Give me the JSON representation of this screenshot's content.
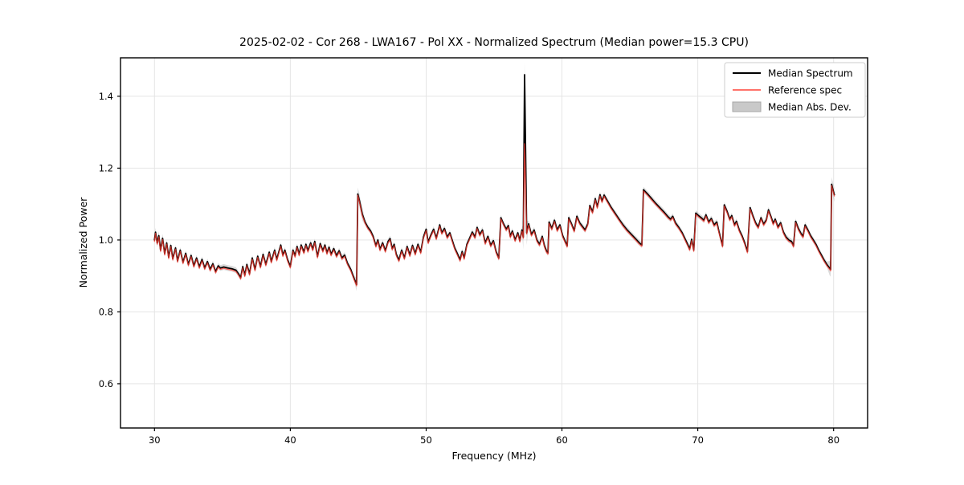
{
  "title": "2025-02-02 - Cor 268 - LWA167 - Pol XX - Normalized Spectrum (Median power=15.3 CPU)",
  "axes": {
    "xlabel": "Frequency (MHz)",
    "ylabel": "Normalized Power",
    "xtick_labels": [
      "30",
      "40",
      "50",
      "60",
      "70",
      "80"
    ],
    "ytick_labels": [
      "0.6",
      "0.8",
      "1.0",
      "1.2",
      "1.4"
    ]
  },
  "legend": {
    "entries": [
      {
        "label": "Median Spectrum",
        "type": "line",
        "color": "#000000"
      },
      {
        "label": "Reference spec",
        "type": "line",
        "color": "#f25c54"
      },
      {
        "label": "Median Abs. Dev.",
        "type": "patch",
        "color": "#c9c9c9"
      }
    ]
  },
  "colors": {
    "median_line": "#000000",
    "reference_line": "#ff3b30",
    "reference_opacity": 0.72,
    "mad_band_fill": "#b8b8b8",
    "mad_band_opacity": 0.5,
    "grid": "#e5e5e5",
    "frame": "#000000",
    "background": "#ffffff"
  },
  "chart_data": {
    "type": "line",
    "title": "2025-02-02 - Cor 268 - LWA167 - Pol XX - Normalized Spectrum (Median power=15.3 CPU)",
    "xlabel": "Frequency (MHz)",
    "ylabel": "Normalized Power",
    "xlim": [
      27.5,
      82.5
    ],
    "ylim": [
      0.477,
      1.507
    ],
    "xticks": [
      30,
      40,
      50,
      60,
      70,
      80
    ],
    "yticks": [
      0.6,
      0.8,
      1.0,
      1.2,
      1.4
    ],
    "grid": true,
    "legend_position": "upper right",
    "series": [
      {
        "name": "Median Spectrum",
        "color": "#000000",
        "points": [
          [
            30.0,
            1.0
          ],
          [
            30.08,
            1.022
          ],
          [
            30.2,
            0.992
          ],
          [
            30.32,
            1.012
          ],
          [
            30.45,
            0.972
          ],
          [
            30.6,
            1.005
          ],
          [
            30.75,
            0.962
          ],
          [
            30.9,
            0.992
          ],
          [
            31.05,
            0.952
          ],
          [
            31.2,
            0.985
          ],
          [
            31.35,
            0.948
          ],
          [
            31.55,
            0.978
          ],
          [
            31.7,
            0.942
          ],
          [
            31.9,
            0.972
          ],
          [
            32.1,
            0.938
          ],
          [
            32.3,
            0.963
          ],
          [
            32.5,
            0.932
          ],
          [
            32.7,
            0.957
          ],
          [
            32.9,
            0.928
          ],
          [
            33.1,
            0.95
          ],
          [
            33.3,
            0.925
          ],
          [
            33.5,
            0.946
          ],
          [
            33.7,
            0.922
          ],
          [
            33.9,
            0.94
          ],
          [
            34.1,
            0.918
          ],
          [
            34.3,
            0.934
          ],
          [
            34.5,
            0.912
          ],
          [
            34.7,
            0.928
          ],
          [
            34.85,
            0.922
          ],
          [
            35.1,
            0.925
          ],
          [
            35.4,
            0.922
          ],
          [
            35.7,
            0.92
          ],
          [
            36.0,
            0.916
          ],
          [
            36.2,
            0.905
          ],
          [
            36.35,
            0.895
          ],
          [
            36.5,
            0.926
          ],
          [
            36.65,
            0.902
          ],
          [
            36.8,
            0.932
          ],
          [
            37.0,
            0.906
          ],
          [
            37.2,
            0.95
          ],
          [
            37.4,
            0.918
          ],
          [
            37.6,
            0.955
          ],
          [
            37.8,
            0.926
          ],
          [
            38.0,
            0.96
          ],
          [
            38.2,
            0.932
          ],
          [
            38.45,
            0.966
          ],
          [
            38.6,
            0.94
          ],
          [
            38.85,
            0.972
          ],
          [
            39.0,
            0.946
          ],
          [
            39.3,
            0.986
          ],
          [
            39.45,
            0.958
          ],
          [
            39.6,
            0.972
          ],
          [
            39.8,
            0.945
          ],
          [
            40.0,
            0.926
          ],
          [
            40.2,
            0.972
          ],
          [
            40.35,
            0.956
          ],
          [
            40.5,
            0.982
          ],
          [
            40.65,
            0.96
          ],
          [
            40.8,
            0.986
          ],
          [
            41.0,
            0.966
          ],
          [
            41.15,
            0.988
          ],
          [
            41.3,
            0.97
          ],
          [
            41.5,
            0.992
          ],
          [
            41.65,
            0.974
          ],
          [
            41.8,
            0.996
          ],
          [
            42.0,
            0.954
          ],
          [
            42.2,
            0.99
          ],
          [
            42.4,
            0.97
          ],
          [
            42.55,
            0.986
          ],
          [
            42.7,
            0.964
          ],
          [
            42.85,
            0.98
          ],
          [
            43.0,
            0.96
          ],
          [
            43.2,
            0.976
          ],
          [
            43.4,
            0.956
          ],
          [
            43.6,
            0.97
          ],
          [
            43.8,
            0.95
          ],
          [
            44.0,
            0.958
          ],
          [
            44.2,
            0.936
          ],
          [
            44.45,
            0.918
          ],
          [
            44.7,
            0.893
          ],
          [
            44.88,
            0.876
          ],
          [
            44.97,
            1.128
          ],
          [
            45.1,
            1.108
          ],
          [
            45.3,
            1.072
          ],
          [
            45.5,
            1.05
          ],
          [
            45.7,
            1.036
          ],
          [
            45.9,
            1.026
          ],
          [
            46.1,
            1.01
          ],
          [
            46.3,
            0.984
          ],
          [
            46.45,
            1.0
          ],
          [
            46.6,
            0.974
          ],
          [
            46.8,
            0.992
          ],
          [
            47.0,
            0.97
          ],
          [
            47.2,
            0.996
          ],
          [
            47.35,
            1.004
          ],
          [
            47.5,
            0.976
          ],
          [
            47.65,
            0.988
          ],
          [
            47.8,
            0.96
          ],
          [
            48.0,
            0.944
          ],
          [
            48.2,
            0.972
          ],
          [
            48.4,
            0.95
          ],
          [
            48.6,
            0.982
          ],
          [
            48.8,
            0.958
          ],
          [
            49.0,
            0.985
          ],
          [
            49.2,
            0.962
          ],
          [
            49.4,
            0.988
          ],
          [
            49.6,
            0.966
          ],
          [
            49.8,
            1.008
          ],
          [
            50.0,
            1.03
          ],
          [
            50.15,
            0.994
          ],
          [
            50.35,
            1.014
          ],
          [
            50.55,
            1.03
          ],
          [
            50.75,
            1.005
          ],
          [
            51.0,
            1.042
          ],
          [
            51.15,
            1.02
          ],
          [
            51.35,
            1.032
          ],
          [
            51.55,
            1.008
          ],
          [
            51.75,
            1.02
          ],
          [
            51.95,
            0.996
          ],
          [
            52.1,
            0.978
          ],
          [
            52.3,
            0.962
          ],
          [
            52.5,
            0.945
          ],
          [
            52.65,
            0.968
          ],
          [
            52.8,
            0.95
          ],
          [
            53.0,
            0.988
          ],
          [
            53.2,
            1.005
          ],
          [
            53.4,
            1.022
          ],
          [
            53.6,
            1.008
          ],
          [
            53.75,
            1.035
          ],
          [
            53.95,
            1.015
          ],
          [
            54.15,
            1.028
          ],
          [
            54.35,
            0.992
          ],
          [
            54.55,
            1.01
          ],
          [
            54.75,
            0.985
          ],
          [
            54.95,
            0.998
          ],
          [
            55.15,
            0.968
          ],
          [
            55.35,
            0.95
          ],
          [
            55.5,
            1.062
          ],
          [
            55.7,
            1.045
          ],
          [
            55.9,
            1.03
          ],
          [
            56.05,
            1.04
          ],
          [
            56.2,
            1.01
          ],
          [
            56.35,
            1.025
          ],
          [
            56.55,
            1.0
          ],
          [
            56.75,
            1.02
          ],
          [
            56.9,
            0.998
          ],
          [
            57.05,
            1.028
          ],
          [
            57.15,
            1.008
          ],
          [
            57.25,
            1.46
          ],
          [
            57.4,
            1.02
          ],
          [
            57.55,
            1.045
          ],
          [
            57.75,
            1.015
          ],
          [
            57.95,
            1.028
          ],
          [
            58.15,
            1.0
          ],
          [
            58.35,
            0.988
          ],
          [
            58.55,
            1.01
          ],
          [
            58.7,
            0.985
          ],
          [
            58.85,
            0.97
          ],
          [
            58.97,
            0.964
          ],
          [
            59.05,
            1.05
          ],
          [
            59.25,
            1.032
          ],
          [
            59.45,
            1.055
          ],
          [
            59.65,
            1.028
          ],
          [
            59.85,
            1.042
          ],
          [
            60.05,
            1.012
          ],
          [
            60.25,
            0.995
          ],
          [
            60.38,
            0.984
          ],
          [
            60.5,
            1.062
          ],
          [
            60.7,
            1.045
          ],
          [
            60.9,
            1.026
          ],
          [
            61.1,
            1.066
          ],
          [
            61.3,
            1.048
          ],
          [
            61.5,
            1.038
          ],
          [
            61.7,
            1.028
          ],
          [
            61.9,
            1.045
          ],
          [
            62.05,
            1.096
          ],
          [
            62.25,
            1.078
          ],
          [
            62.45,
            1.115
          ],
          [
            62.6,
            1.092
          ],
          [
            62.8,
            1.126
          ],
          [
            62.95,
            1.108
          ],
          [
            63.1,
            1.125
          ],
          [
            63.3,
            1.112
          ],
          [
            63.6,
            1.092
          ],
          [
            63.9,
            1.075
          ],
          [
            64.2,
            1.058
          ],
          [
            64.5,
            1.042
          ],
          [
            64.8,
            1.028
          ],
          [
            65.1,
            1.016
          ],
          [
            65.4,
            1.004
          ],
          [
            65.7,
            0.992
          ],
          [
            65.88,
            0.986
          ],
          [
            66.0,
            1.14
          ],
          [
            66.3,
            1.128
          ],
          [
            66.6,
            1.115
          ],
          [
            66.9,
            1.102
          ],
          [
            67.2,
            1.09
          ],
          [
            67.5,
            1.078
          ],
          [
            67.8,
            1.065
          ],
          [
            68.0,
            1.058
          ],
          [
            68.15,
            1.066
          ],
          [
            68.35,
            1.048
          ],
          [
            68.6,
            1.035
          ],
          [
            68.85,
            1.02
          ],
          [
            69.1,
            1.0
          ],
          [
            69.25,
            0.988
          ],
          [
            69.4,
            0.975
          ],
          [
            69.55,
            1.002
          ],
          [
            69.7,
            0.972
          ],
          [
            69.85,
            1.075
          ],
          [
            70.05,
            1.068
          ],
          [
            70.25,
            1.062
          ],
          [
            70.45,
            1.055
          ],
          [
            70.6,
            1.07
          ],
          [
            70.8,
            1.05
          ],
          [
            71.0,
            1.06
          ],
          [
            71.2,
            1.042
          ],
          [
            71.4,
            1.05
          ],
          [
            71.55,
            1.025
          ],
          [
            71.7,
            1.002
          ],
          [
            71.82,
            0.984
          ],
          [
            71.95,
            1.098
          ],
          [
            72.15,
            1.08
          ],
          [
            72.35,
            1.058
          ],
          [
            72.5,
            1.068
          ],
          [
            72.7,
            1.042
          ],
          [
            72.85,
            1.052
          ],
          [
            73.05,
            1.028
          ],
          [
            73.25,
            1.012
          ],
          [
            73.45,
            0.992
          ],
          [
            73.65,
            0.968
          ],
          [
            73.85,
            1.09
          ],
          [
            74.05,
            1.068
          ],
          [
            74.25,
            1.048
          ],
          [
            74.45,
            1.036
          ],
          [
            74.65,
            1.062
          ],
          [
            74.85,
            1.044
          ],
          [
            75.05,
            1.056
          ],
          [
            75.2,
            1.084
          ],
          [
            75.4,
            1.064
          ],
          [
            75.55,
            1.046
          ],
          [
            75.7,
            1.058
          ],
          [
            75.9,
            1.036
          ],
          [
            76.1,
            1.048
          ],
          [
            76.3,
            1.022
          ],
          [
            76.5,
            1.008
          ],
          [
            76.7,
            1.0
          ],
          [
            76.9,
            0.996
          ],
          [
            77.05,
            0.984
          ],
          [
            77.2,
            1.052
          ],
          [
            77.4,
            1.032
          ],
          [
            77.6,
            1.018
          ],
          [
            77.75,
            1.01
          ],
          [
            77.9,
            1.042
          ],
          [
            78.1,
            1.028
          ],
          [
            78.3,
            1.012
          ],
          [
            78.5,
            1.0
          ],
          [
            78.7,
            0.988
          ],
          [
            78.9,
            0.972
          ],
          [
            79.1,
            0.958
          ],
          [
            79.3,
            0.944
          ],
          [
            79.5,
            0.932
          ],
          [
            79.7,
            0.922
          ],
          [
            79.78,
            0.918
          ],
          [
            79.85,
            1.155
          ],
          [
            79.95,
            1.14
          ],
          [
            80.05,
            1.126
          ]
        ]
      },
      {
        "name": "Reference spec",
        "color": "#ff3b30",
        "derived_from": "Median Spectrum",
        "offset": -0.0035,
        "peak_override": {
          "x": 57.25,
          "y": 1.268
        }
      },
      {
        "name": "Median Abs. Dev.",
        "band_around": "Median Spectrum",
        "default_halfwidth": 0.008,
        "halfwidth_regions": [
          {
            "from": 29.9,
            "to": 30.6,
            "halfwidth": 0.012
          },
          {
            "from": 44.8,
            "to": 45.3,
            "halfwidth": 0.018
          },
          {
            "from": 57.1,
            "to": 57.4,
            "halfwidth": 0.034
          },
          {
            "from": 79.6,
            "to": 80.2,
            "halfwidth": 0.02
          }
        ]
      }
    ]
  }
}
